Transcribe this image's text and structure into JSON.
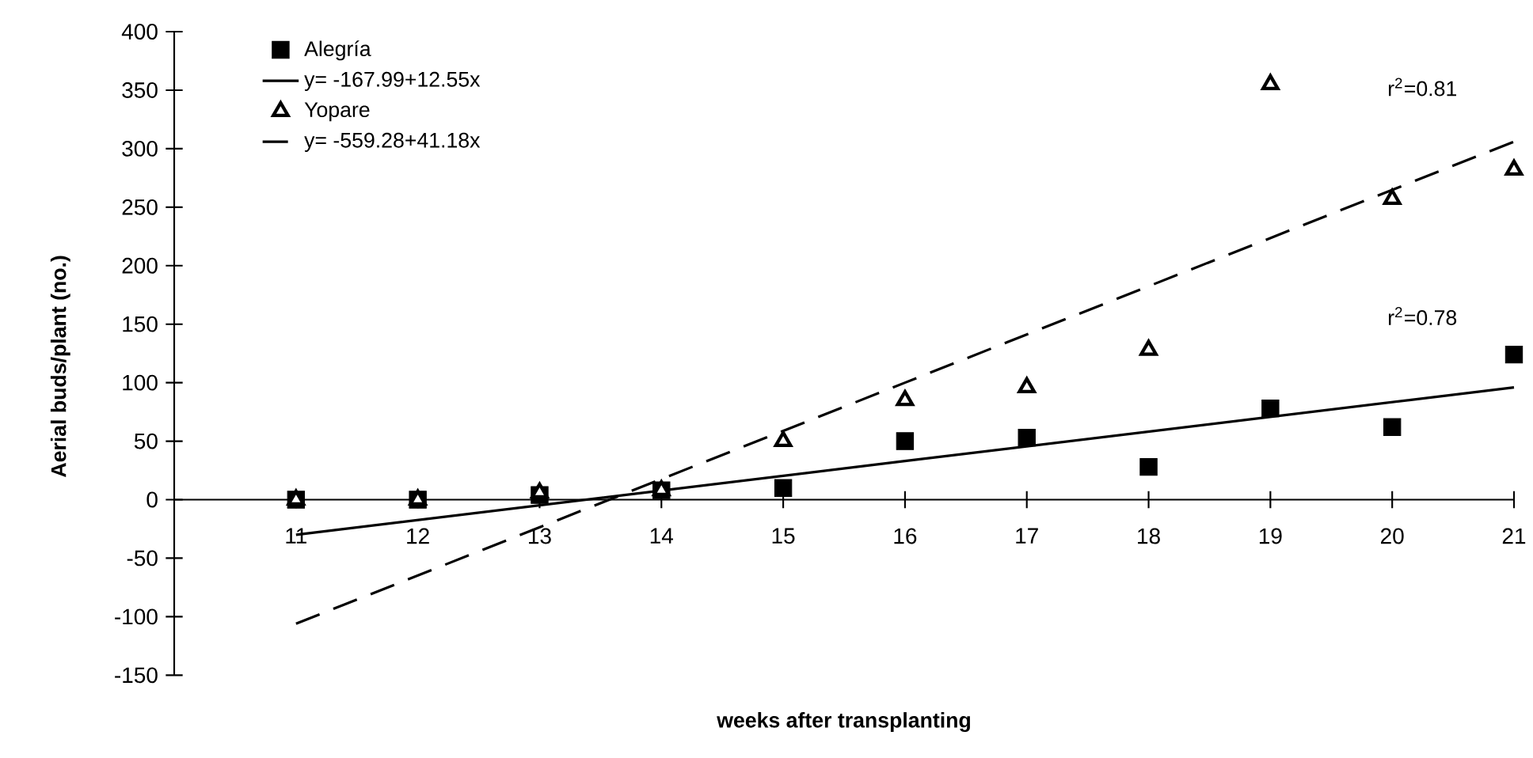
{
  "chart_data": {
    "type": "scatter",
    "xlabel": "weeks after transplanting",
    "ylabel": "Aerial buds/plant (no.)",
    "x": [
      11,
      12,
      13,
      14,
      15,
      16,
      17,
      18,
      19,
      20,
      21
    ],
    "series": [
      {
        "name": "Alegría",
        "marker": "square",
        "color": "#000000",
        "values": [
          0,
          0,
          4,
          8,
          10,
          50,
          53,
          28,
          78,
          62,
          124
        ]
      },
      {
        "name": "y= -167.99+12.55x",
        "type": "line",
        "line_style": "solid",
        "marker": "none",
        "color": "#000000",
        "x": [
          11,
          16,
          21
        ],
        "values": [
          -30,
          33,
          96
        ]
      },
      {
        "name": "Yopare",
        "marker": "triangle",
        "color": "#000000",
        "values": [
          0,
          0,
          6,
          8,
          50,
          85,
          96,
          128,
          355,
          257,
          282
        ]
      },
      {
        "name": "y= -559.28+41.18x",
        "type": "line",
        "line_style": "dashed",
        "marker": "none",
        "color": "#000000",
        "x": [
          11,
          16,
          21
        ],
        "values": [
          -106,
          100,
          306
        ]
      }
    ],
    "xlim": [
      10,
      21
    ],
    "xticks": [
      11,
      12,
      13,
      14,
      15,
      16,
      17,
      18,
      19,
      20,
      21
    ],
    "ylim": [
      -150,
      400
    ],
    "yticks": [
      -150,
      -100,
      -50,
      0,
      50,
      100,
      150,
      200,
      250,
      300,
      350,
      400
    ],
    "grid": false,
    "legend": "top left",
    "annotations": [
      "r$^{2}$=0.81",
      "r$^{2}$=0.78"
    ]
  }
}
